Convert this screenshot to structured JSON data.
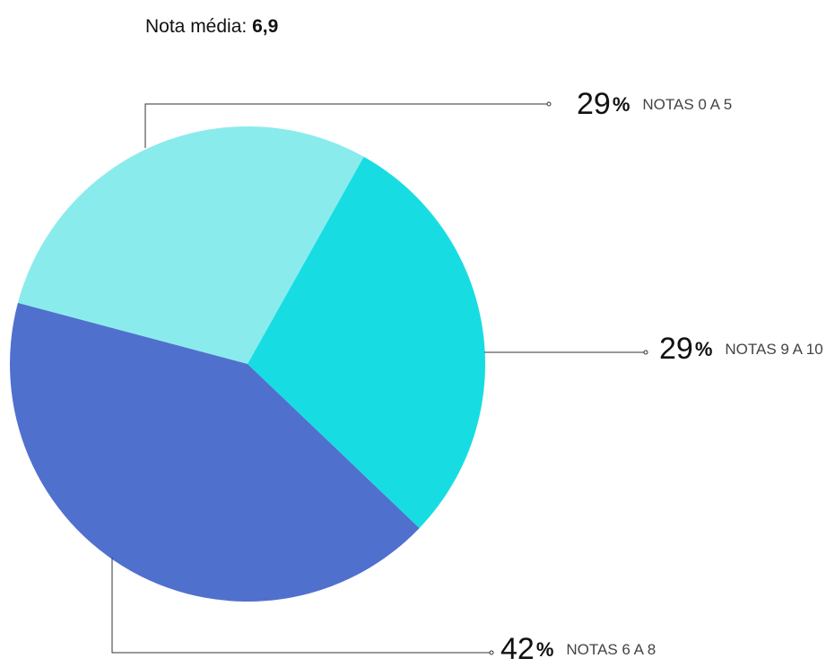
{
  "chart_data": {
    "type": "pie",
    "title": "Nota média:",
    "title_value": "6,9",
    "categories": [
      "NOTAS 0 A 5",
      "NOTAS 9 A 10",
      "NOTAS 6 A 8"
    ],
    "values": [
      29,
      29,
      42
    ],
    "value_labels": [
      "29%",
      "29%",
      "42%"
    ],
    "colors": [
      "#8aebed",
      "#17dde3",
      "#5070cd"
    ]
  }
}
